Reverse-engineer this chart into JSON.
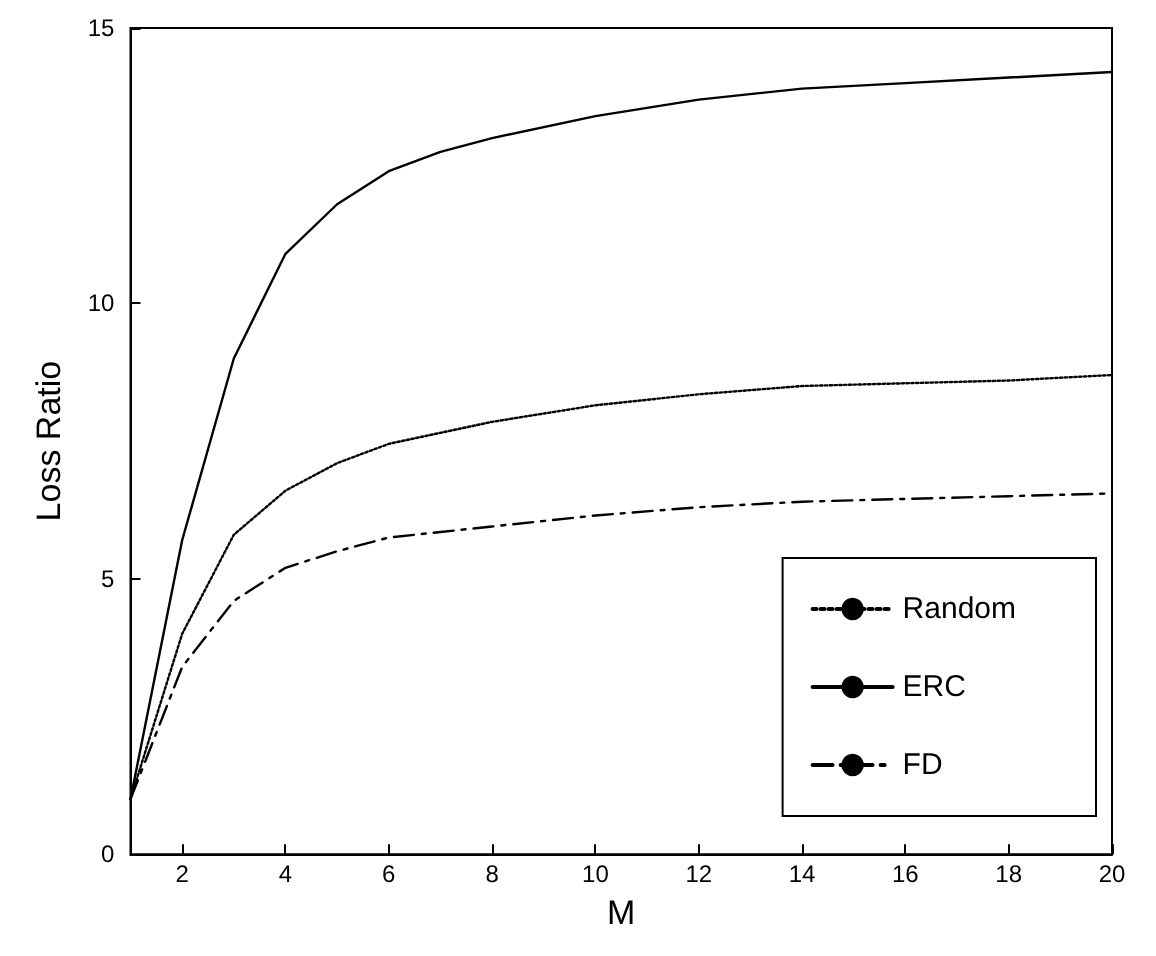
{
  "chart_data": {
    "type": "line",
    "xlabel": "M",
    "ylabel": "Loss Ratio",
    "xlim": [
      1,
      20
    ],
    "ylim": [
      0,
      15
    ],
    "xticks": [
      2,
      4,
      6,
      8,
      10,
      12,
      14,
      16,
      18,
      20
    ],
    "yticks": [
      0,
      5,
      10,
      15
    ],
    "grid": false,
    "legend": "bottom right",
    "marker": "none",
    "x": [
      1,
      2,
      3,
      4,
      5,
      6,
      7,
      8,
      10,
      12,
      14,
      16,
      18,
      20
    ],
    "series": [
      {
        "name": "Random",
        "color": "#000000",
        "line_style": "dotted",
        "values": [
          1,
          4.0,
          5.8,
          6.6,
          7.1,
          7.45,
          7.65,
          7.85,
          8.15,
          8.35,
          8.5,
          8.55,
          8.6,
          8.7
        ]
      },
      {
        "name": "ERC",
        "color": "#000000",
        "line_style": "solid",
        "values": [
          1,
          5.7,
          9.0,
          10.9,
          11.8,
          12.4,
          12.75,
          13.0,
          13.4,
          13.7,
          13.9,
          14.0,
          14.1,
          14.2
        ]
      },
      {
        "name": "FD",
        "color": "#000000",
        "line_style": "dashdot",
        "values": [
          1,
          3.4,
          4.6,
          5.2,
          5.5,
          5.75,
          5.85,
          5.95,
          6.15,
          6.3,
          6.4,
          6.45,
          6.5,
          6.55
        ]
      }
    ]
  }
}
